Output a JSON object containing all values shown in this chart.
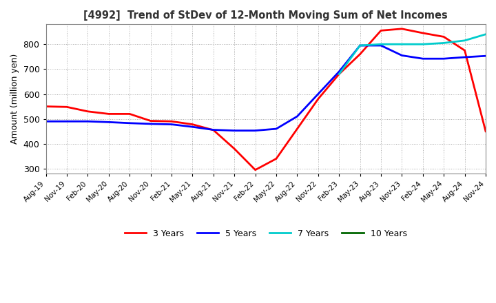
{
  "title": "[4992]  Trend of StDev of 12-Month Moving Sum of Net Incomes",
  "ylabel": "Amount (million yen)",
  "ylim": [
    280,
    880
  ],
  "yticks": [
    300,
    400,
    500,
    600,
    700,
    800
  ],
  "legend_labels": [
    "3 Years",
    "5 Years",
    "7 Years",
    "10 Years"
  ],
  "legend_colors": [
    "#ff0000",
    "#0000ff",
    "#00cccc",
    "#006600"
  ],
  "x_labels": [
    "Aug-19",
    "Nov-19",
    "Feb-20",
    "May-20",
    "Aug-20",
    "Nov-20",
    "Feb-21",
    "May-21",
    "Aug-21",
    "Nov-21",
    "Feb-22",
    "May-22",
    "Aug-22",
    "Nov-22",
    "Feb-23",
    "May-23",
    "Aug-23",
    "Nov-23",
    "Feb-24",
    "May-24",
    "Aug-24",
    "Nov-24"
  ],
  "series_3y": [
    550,
    548,
    530,
    520,
    520,
    492,
    490,
    478,
    455,
    380,
    295,
    340,
    460,
    580,
    680,
    760,
    855,
    862,
    845,
    830,
    775,
    450
  ],
  "series_5y": [
    490,
    490,
    490,
    487,
    483,
    480,
    478,
    468,
    456,
    453,
    453,
    460,
    510,
    600,
    690,
    795,
    795,
    755,
    742,
    742,
    748,
    753
  ],
  "series_7y": [
    null,
    null,
    null,
    null,
    null,
    null,
    null,
    null,
    null,
    null,
    null,
    null,
    null,
    null,
    680,
    795,
    800,
    800,
    800,
    805,
    815,
    840
  ],
  "series_10y": [
    null,
    null,
    null,
    null,
    null,
    null,
    null,
    null,
    null,
    null,
    null,
    null,
    null,
    null,
    null,
    null,
    null,
    null,
    null,
    null,
    null,
    null
  ],
  "background_color": "#ffffff",
  "grid_color": "#aaaaaa",
  "grid_style": ":"
}
